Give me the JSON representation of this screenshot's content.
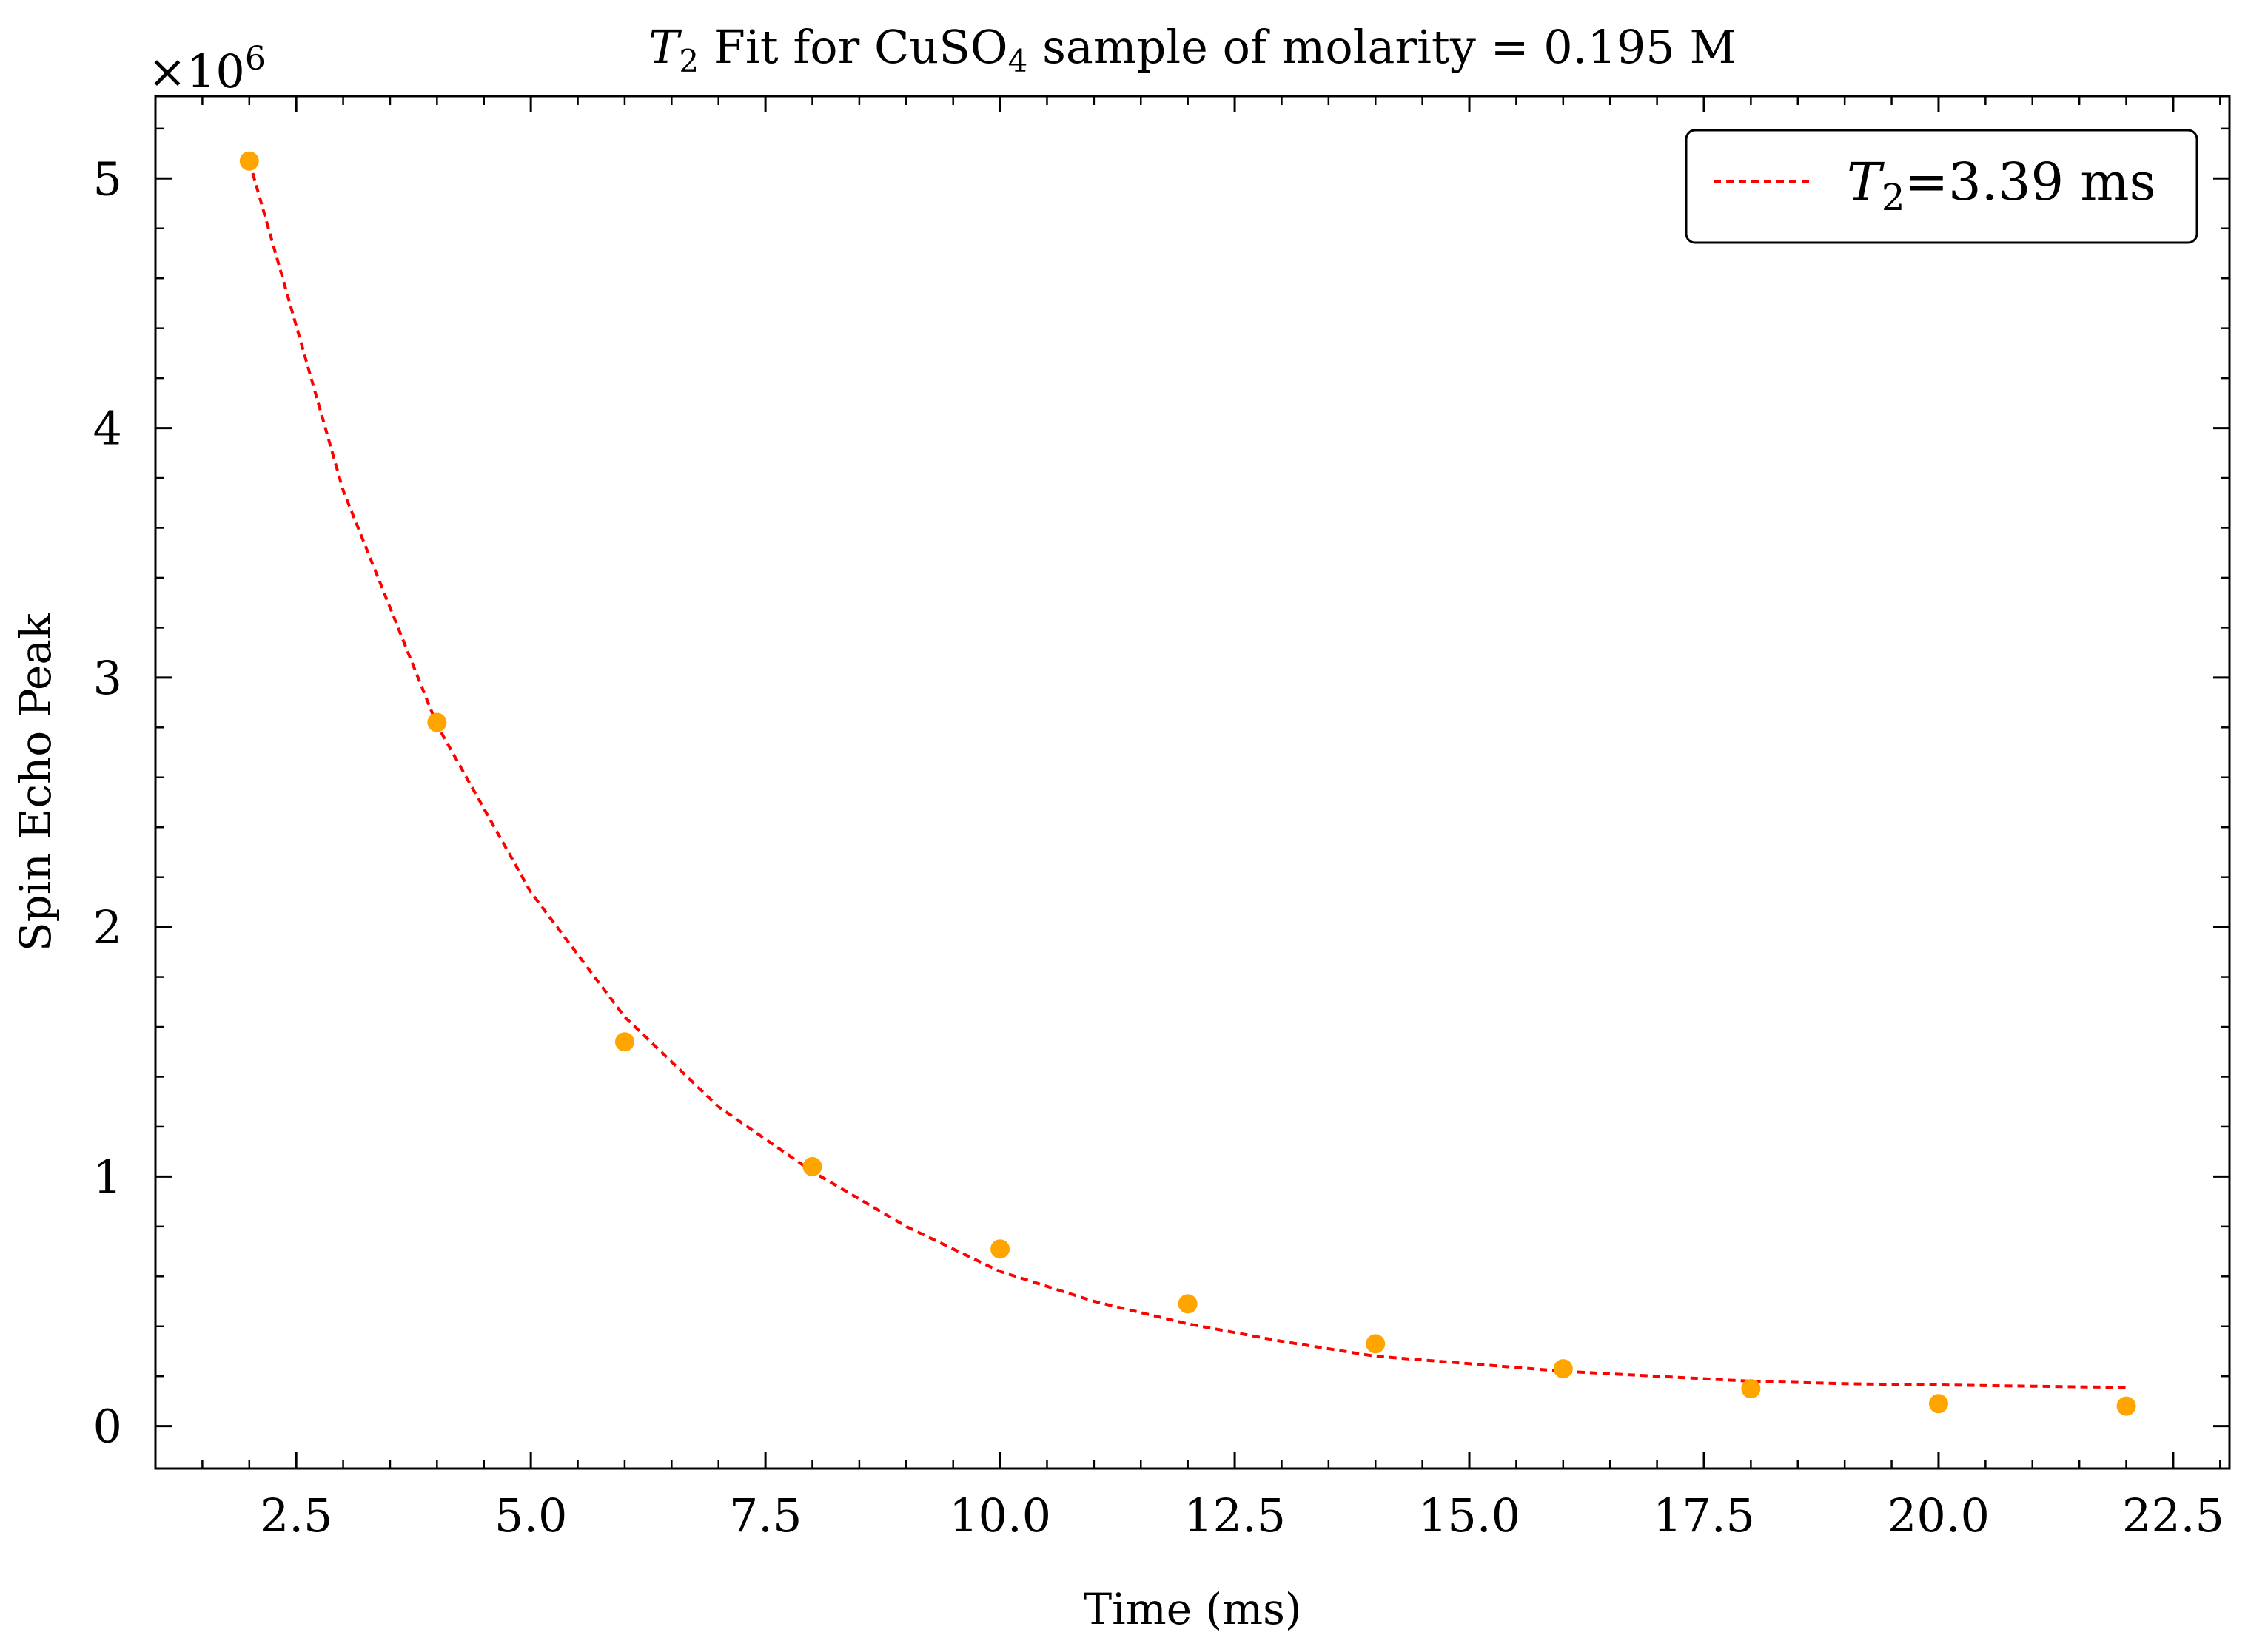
{
  "chart_data": {
    "type": "scatter",
    "title": {
      "prefix": "T",
      "prefix_sub": "2",
      "middle": " Fit for CuSO",
      "middle_sub": "4",
      "suffix": " sample of molarity = 0.195 M"
    },
    "xlabel": "Time (ms)",
    "ylabel": "Spin Echo Peak",
    "y_multiplier": {
      "base": "×10",
      "exponent": "6"
    },
    "xlim": [
      1.0,
      23.1
    ],
    "ylim": [
      -0.17,
      5.33
    ],
    "x_ticks": [
      2.5,
      5.0,
      7.5,
      10.0,
      12.5,
      15.0,
      17.5,
      20.0,
      22.5
    ],
    "x_tick_labels": [
      "2.5",
      "5.0",
      "7.5",
      "10.0",
      "12.5",
      "15.0",
      "17.5",
      "20.0",
      "22.5"
    ],
    "y_ticks": [
      0,
      1,
      2,
      3,
      4,
      5
    ],
    "y_tick_labels": [
      "0",
      "1",
      "2",
      "3",
      "4",
      "5"
    ],
    "x_minor_step": 0.5,
    "y_minor_step": 0.2,
    "grid": false,
    "legend_position": "top-right",
    "series": [
      {
        "kind": "points",
        "color": "#FFA500",
        "x": [
          2.0,
          4.0,
          6.0,
          8.0,
          10.0,
          12.0,
          14.0,
          16.0,
          18.0,
          20.0,
          22.0
        ],
        "y": [
          5.07,
          2.82,
          1.54,
          1.04,
          0.71,
          0.49,
          0.33,
          0.23,
          0.15,
          0.09,
          0.08
        ]
      },
      {
        "kind": "fit",
        "color": "#FF0000",
        "style": "dashed",
        "legend": {
          "prefix": "T",
          "sub": "2",
          "suffix": "=3.39 ms"
        },
        "x": [
          2.0,
          3.0,
          4.0,
          5.0,
          6.0,
          7.0,
          8.0,
          9.0,
          10.0,
          11.0,
          12.0,
          13.0,
          14.0,
          15.0,
          16.0,
          17.0,
          18.0,
          19.0,
          20.0,
          21.0,
          22.0
        ],
        "y": [
          5.07,
          3.75,
          2.81,
          2.14,
          1.64,
          1.28,
          1.02,
          0.8,
          0.62,
          0.5,
          0.41,
          0.34,
          0.28,
          0.25,
          0.22,
          0.2,
          0.18,
          0.17,
          0.165,
          0.16,
          0.155
        ]
      }
    ]
  }
}
